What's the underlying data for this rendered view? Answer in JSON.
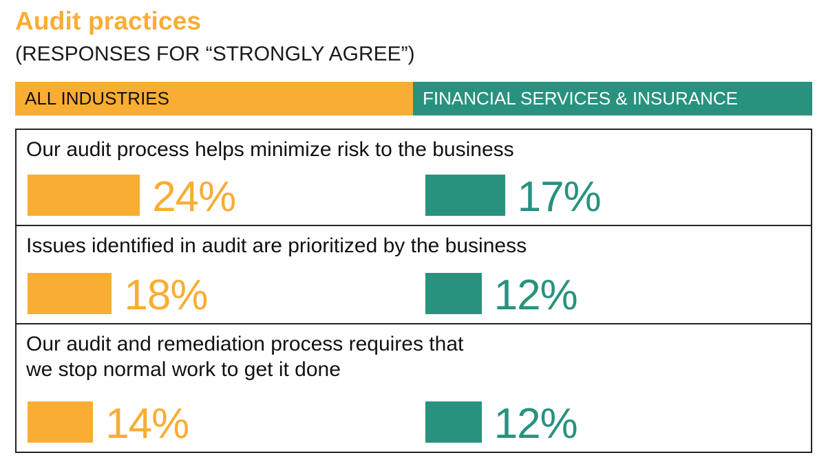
{
  "title": "Audit practices",
  "subtitle": "(RESPONSES FOR “STRONGLY AGREE”)",
  "colors": {
    "all_industries": "#f9ad33",
    "financial_services": "#28927f"
  },
  "legend": {
    "all": "ALL INDUSTRIES",
    "fin": "FINANCIAL SERVICES & INSURANCE"
  },
  "chart_data": {
    "type": "bar",
    "categories": [
      "Our audit process helps minimize risk to the business",
      "Issues identified in audit are prioritized by the business",
      "Our audit and remediation process requires that\nwe stop normal work to get it done"
    ],
    "series": [
      {
        "name": "ALL INDUSTRIES",
        "values": [
          24,
          18,
          14
        ],
        "labels": [
          "24%",
          "18%",
          "14%"
        ]
      },
      {
        "name": "FINANCIAL SERVICES & INSURANCE",
        "values": [
          17,
          12,
          12
        ],
        "labels": [
          "17%",
          "12%",
          "12%"
        ]
      }
    ],
    "title": "Audit practices",
    "unit": "%"
  }
}
